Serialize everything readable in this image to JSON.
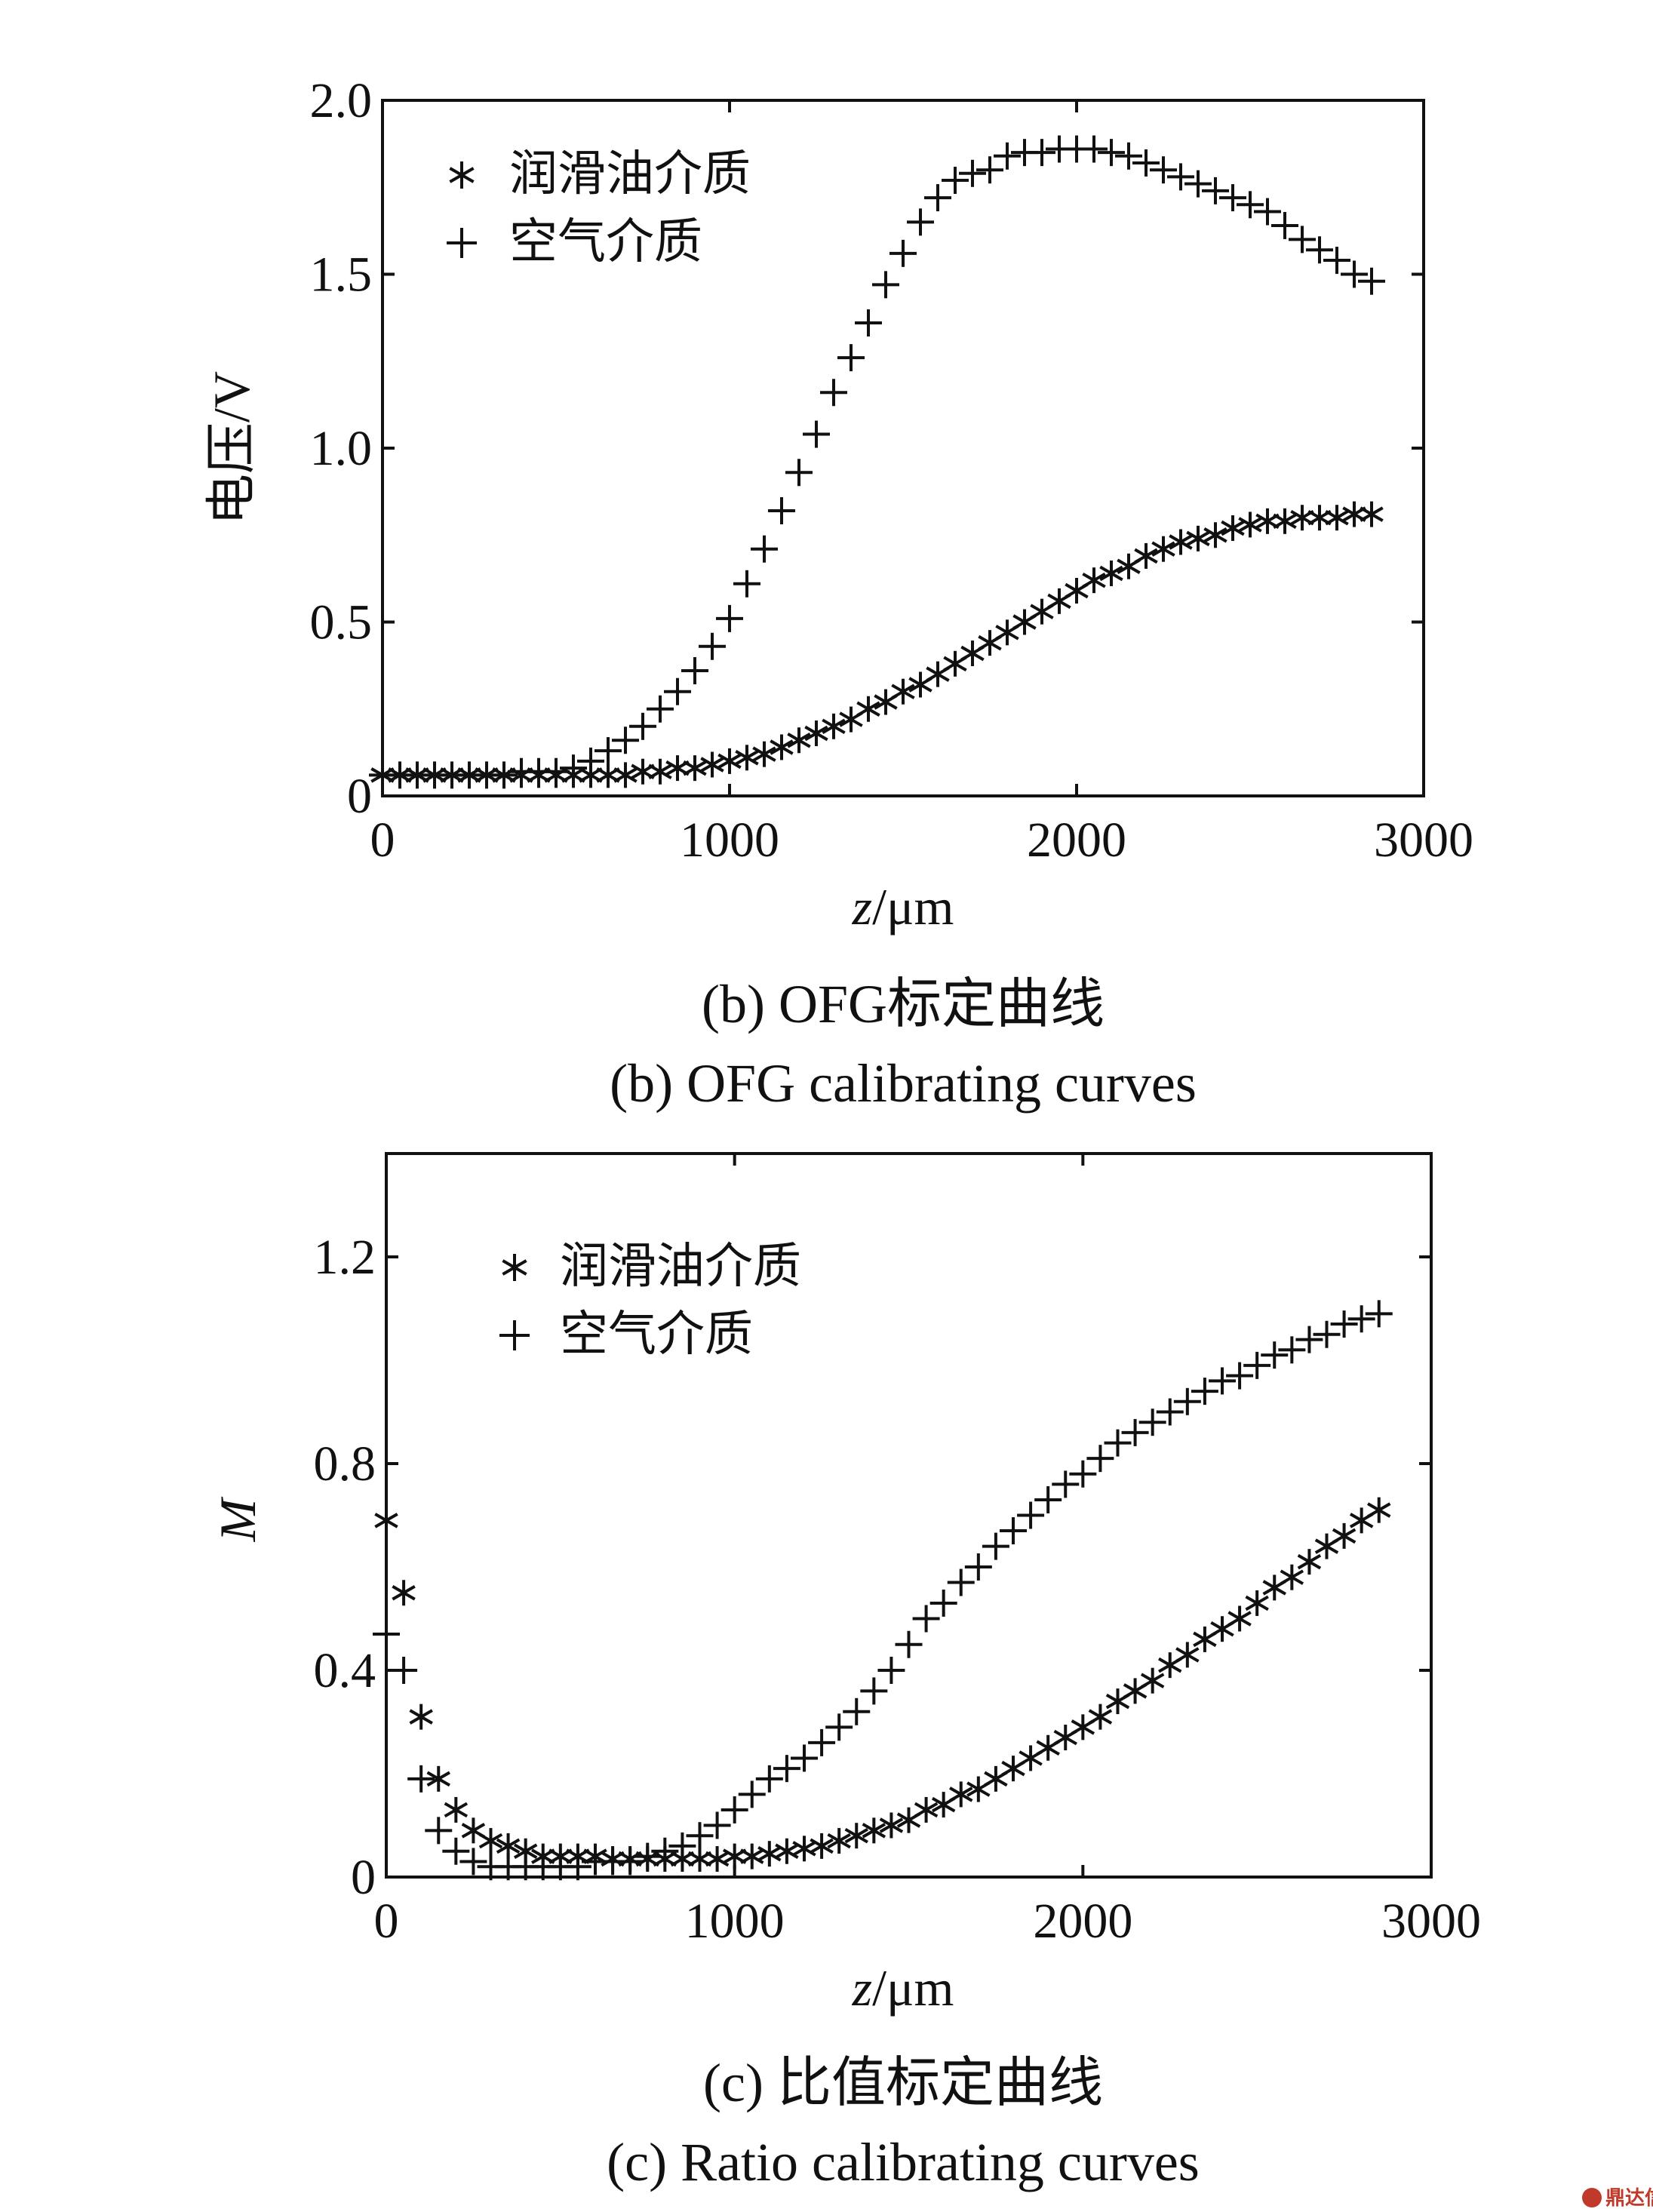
{
  "chart_data": [
    {
      "panel": "b",
      "type": "scatter",
      "ylabel": "电压/V",
      "xlabel": {
        "var": "z",
        "unit": "/μm"
      },
      "xlim": [
        0,
        3000
      ],
      "ylim": [
        0,
        2.0
      ],
      "xticks": [
        "0",
        "1000",
        "2000",
        "3000"
      ],
      "yticks": [
        "0",
        "0.5",
        "1.0",
        "1.5",
        "2.0"
      ],
      "xtick_values": [
        0,
        1000,
        2000,
        3000
      ],
      "ytick_values": [
        0,
        0.5,
        1.0,
        1.5,
        2.0
      ],
      "grid": false,
      "legend_position": "top-left",
      "series": [
        {
          "name": "润滑油介质",
          "marker": "asterisk",
          "x": [
            0,
            50,
            100,
            150,
            200,
            250,
            300,
            350,
            400,
            450,
            500,
            550,
            600,
            650,
            700,
            750,
            800,
            850,
            900,
            950,
            1000,
            1050,
            1100,
            1150,
            1200,
            1250,
            1300,
            1350,
            1400,
            1450,
            1500,
            1550,
            1600,
            1650,
            1700,
            1750,
            1800,
            1850,
            1900,
            1950,
            2000,
            2050,
            2100,
            2150,
            2200,
            2250,
            2300,
            2350,
            2400,
            2450,
            2500,
            2550,
            2600,
            2650,
            2700,
            2750,
            2800,
            2850
          ],
          "y": [
            0.06,
            0.06,
            0.06,
            0.06,
            0.06,
            0.06,
            0.06,
            0.06,
            0.06,
            0.06,
            0.06,
            0.06,
            0.06,
            0.06,
            0.06,
            0.07,
            0.07,
            0.08,
            0.08,
            0.09,
            0.1,
            0.11,
            0.12,
            0.14,
            0.16,
            0.18,
            0.2,
            0.22,
            0.25,
            0.27,
            0.3,
            0.32,
            0.35,
            0.38,
            0.41,
            0.44,
            0.47,
            0.5,
            0.53,
            0.56,
            0.59,
            0.62,
            0.64,
            0.66,
            0.69,
            0.71,
            0.73,
            0.74,
            0.75,
            0.77,
            0.78,
            0.79,
            0.79,
            0.8,
            0.8,
            0.8,
            0.81,
            0.81
          ]
        },
        {
          "name": "空气介质",
          "marker": "plus",
          "x": [
            0,
            50,
            100,
            150,
            200,
            250,
            300,
            350,
            400,
            450,
            500,
            550,
            600,
            650,
            700,
            750,
            800,
            850,
            900,
            950,
            1000,
            1050,
            1100,
            1150,
            1200,
            1250,
            1300,
            1350,
            1400,
            1450,
            1500,
            1550,
            1600,
            1650,
            1700,
            1750,
            1800,
            1850,
            1900,
            1950,
            2000,
            2050,
            2100,
            2150,
            2200,
            2250,
            2300,
            2350,
            2400,
            2450,
            2500,
            2550,
            2600,
            2650,
            2700,
            2750,
            2800,
            2850
          ],
          "y": [
            0.06,
            0.06,
            0.06,
            0.06,
            0.06,
            0.06,
            0.06,
            0.06,
            0.07,
            0.07,
            0.07,
            0.08,
            0.1,
            0.13,
            0.16,
            0.2,
            0.25,
            0.3,
            0.36,
            0.43,
            0.51,
            0.61,
            0.71,
            0.82,
            0.93,
            1.04,
            1.16,
            1.26,
            1.36,
            1.47,
            1.56,
            1.65,
            1.72,
            1.77,
            1.79,
            1.8,
            1.84,
            1.85,
            1.85,
            1.86,
            1.86,
            1.86,
            1.85,
            1.84,
            1.82,
            1.8,
            1.78,
            1.76,
            1.74,
            1.72,
            1.7,
            1.68,
            1.64,
            1.6,
            1.57,
            1.54,
            1.5,
            1.48
          ]
        }
      ],
      "caption_cn": "(b) OFG标定曲线",
      "caption_en": "(b) OFG calibrating curves"
    },
    {
      "panel": "c",
      "type": "scatter",
      "ylabel": "M",
      "xlabel": {
        "var": "z",
        "unit": "/μm"
      },
      "xlim": [
        0,
        3000
      ],
      "ylim": [
        0,
        1.4
      ],
      "xticks": [
        "0",
        "1000",
        "2000",
        "3000"
      ],
      "yticks": [
        "0",
        "0.4",
        "0.8",
        "1.2"
      ],
      "xtick_values": [
        0,
        1000,
        2000,
        3000
      ],
      "ytick_values": [
        0,
        0.4,
        0.8,
        1.2
      ],
      "grid": false,
      "legend_position": "top-left",
      "series": [
        {
          "name": "润滑油介质",
          "marker": "asterisk",
          "x": [
            0,
            50,
            100,
            150,
            200,
            250,
            300,
            350,
            400,
            450,
            500,
            550,
            600,
            650,
            700,
            750,
            800,
            850,
            900,
            950,
            1000,
            1050,
            1100,
            1150,
            1200,
            1250,
            1300,
            1350,
            1400,
            1450,
            1500,
            1550,
            1600,
            1650,
            1700,
            1750,
            1800,
            1850,
            1900,
            1950,
            2000,
            2050,
            2100,
            2150,
            2200,
            2250,
            2300,
            2350,
            2400,
            2450,
            2500,
            2550,
            2600,
            2650,
            2700,
            2750,
            2800,
            2850
          ],
          "y": [
            0.69,
            0.55,
            0.31,
            0.19,
            0.13,
            0.09,
            0.07,
            0.06,
            0.05,
            0.04,
            0.04,
            0.04,
            0.04,
            0.035,
            0.035,
            0.035,
            0.035,
            0.035,
            0.035,
            0.035,
            0.04,
            0.04,
            0.045,
            0.05,
            0.055,
            0.06,
            0.07,
            0.08,
            0.09,
            0.1,
            0.11,
            0.13,
            0.14,
            0.16,
            0.17,
            0.19,
            0.21,
            0.23,
            0.25,
            0.27,
            0.29,
            0.31,
            0.34,
            0.36,
            0.38,
            0.41,
            0.43,
            0.46,
            0.48,
            0.5,
            0.53,
            0.56,
            0.58,
            0.61,
            0.64,
            0.66,
            0.69,
            0.71
          ]
        },
        {
          "name": "空气介质",
          "marker": "plus",
          "x": [
            0,
            50,
            100,
            150,
            200,
            250,
            300,
            350,
            400,
            450,
            500,
            550,
            600,
            650,
            700,
            750,
            800,
            850,
            900,
            950,
            1000,
            1050,
            1100,
            1150,
            1200,
            1250,
            1300,
            1350,
            1400,
            1450,
            1500,
            1550,
            1600,
            1650,
            1700,
            1750,
            1800,
            1850,
            1900,
            1950,
            2000,
            2050,
            2100,
            2150,
            2200,
            2250,
            2300,
            2350,
            2400,
            2450,
            2500,
            2550,
            2600,
            2650,
            2700,
            2750,
            2800,
            2850
          ],
          "y": [
            0.47,
            0.4,
            0.19,
            0.09,
            0.05,
            0.03,
            0.02,
            0.02,
            0.02,
            0.02,
            0.02,
            0.02,
            0.03,
            0.03,
            0.03,
            0.04,
            0.05,
            0.06,
            0.08,
            0.1,
            0.13,
            0.16,
            0.19,
            0.21,
            0.23,
            0.26,
            0.29,
            0.32,
            0.36,
            0.4,
            0.45,
            0.5,
            0.53,
            0.57,
            0.6,
            0.64,
            0.67,
            0.7,
            0.73,
            0.76,
            0.78,
            0.81,
            0.84,
            0.86,
            0.88,
            0.9,
            0.92,
            0.94,
            0.96,
            0.97,
            0.99,
            1.01,
            1.02,
            1.04,
            1.05,
            1.07,
            1.08,
            1.09
          ]
        }
      ],
      "caption_cn": "(c) 比值标定曲线",
      "caption_en": "(c) Ratio calibrating curves"
    }
  ],
  "watermark": {
    "text": "鼎达信",
    "color": "#c0392b"
  }
}
